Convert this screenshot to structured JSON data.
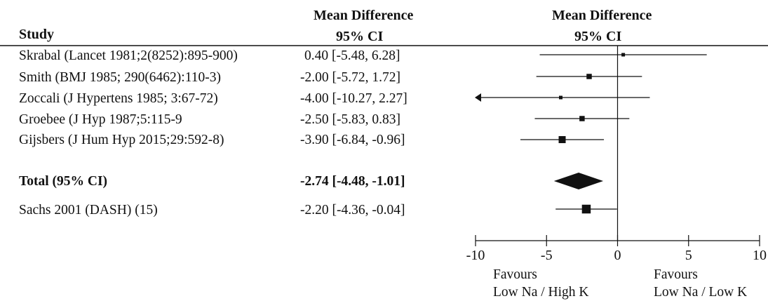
{
  "headers": {
    "study": "Study",
    "col_line1": "Mean Difference",
    "col_line2": "95% CI",
    "plot_line1": "Mean Difference",
    "plot_line2": "95% CI"
  },
  "chart_data": {
    "type": "forest",
    "studies": [
      {
        "label": "Skrabal (Lancet 1981;2(8252):895-900)",
        "ci_text": "0.40 [-5.48, 6.28]",
        "mean": 0.4,
        "lower": -5.48,
        "upper": 6.28,
        "weight": 1
      },
      {
        "label": "Smith (BMJ 1985; 290(6462):110-3)",
        "ci_text": "-2.00 [-5.72, 1.72]",
        "mean": -2.0,
        "lower": -5.72,
        "upper": 1.72,
        "weight": 2
      },
      {
        "label": "Zoccali (J Hypertens 1985; 3:67-72)",
        "ci_text": "-4.00 [-10.27, 2.27]",
        "mean": -4.0,
        "lower": -10.27,
        "upper": 2.27,
        "weight": 1
      },
      {
        "label": "Groebee (J Hyp 1987;5:115-9",
        "ci_text": "-2.50 [-5.83, 0.83]",
        "mean": -2.5,
        "lower": -5.83,
        "upper": 0.83,
        "weight": 2
      },
      {
        "label": "Gijsbers (J Hum Hyp 2015;29:592-8)",
        "ci_text": "-3.90 [-6.84, -0.96]",
        "mean": -3.9,
        "lower": -6.84,
        "upper": -0.96,
        "weight": 3
      }
    ],
    "total": {
      "label": "Total (95% CI)",
      "ci_text": "-2.74 [-4.48, -1.01]",
      "mean": -2.74,
      "lower": -4.48,
      "upper": -1.01
    },
    "reference": {
      "label": "Sachs 2001 (DASH) (15)",
      "ci_text": "-2.20 [-4.36, -0.04]",
      "mean": -2.2,
      "lower": -4.36,
      "upper": -0.04,
      "weight": 4
    },
    "xlim": [
      -10,
      10
    ],
    "xticks": [
      -10,
      -5,
      0,
      5,
      10
    ],
    "favours_left": [
      "Favours",
      "Low Na / High K"
    ],
    "favours_right": [
      "Favours",
      "Low Na / Low K"
    ]
  }
}
